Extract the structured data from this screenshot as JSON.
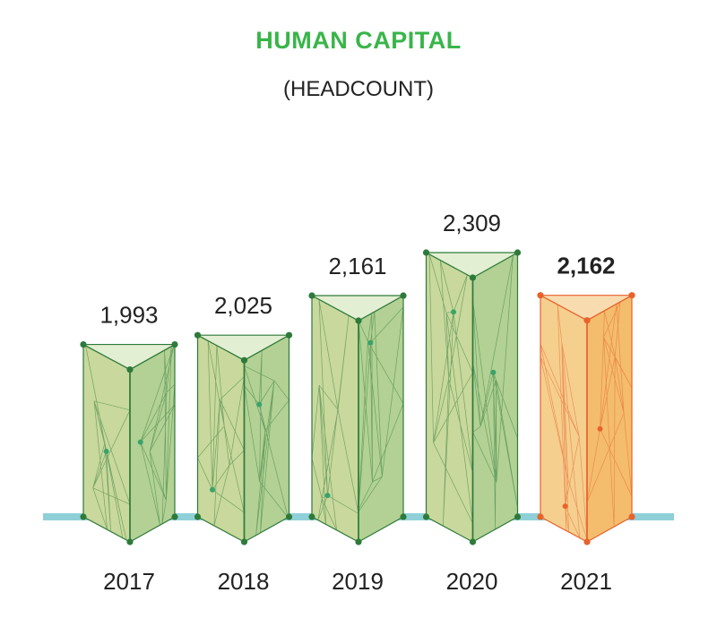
{
  "chart_data": {
    "type": "bar",
    "title": "HUMAN CAPITAL",
    "subtitle": "(HEADCOUNT)",
    "categories": [
      "2017",
      "2018",
      "2019",
      "2020",
      "2021"
    ],
    "values": [
      1993,
      2025,
      2161,
      2309,
      2162
    ],
    "value_labels": [
      "1,993",
      "2,025",
      "2,161",
      "2,309",
      "2,162"
    ],
    "highlight_index": 4,
    "xlabel": "",
    "ylabel": "",
    "grid": false,
    "legend": "none"
  },
  "colors": {
    "title": "#39b54a",
    "bar_green_front": "#c9d89c",
    "bar_green_side": "#b3d194",
    "bar_green_top": "#e3efd2",
    "bar_green_edge": "#2d7a3a",
    "bar_orange_front": "#f5cf8e",
    "bar_orange_side": "#f3bd6d",
    "bar_orange_top": "#f8dcb0",
    "bar_orange_edge": "#e8622c",
    "baseline": "#8fd0d8"
  }
}
